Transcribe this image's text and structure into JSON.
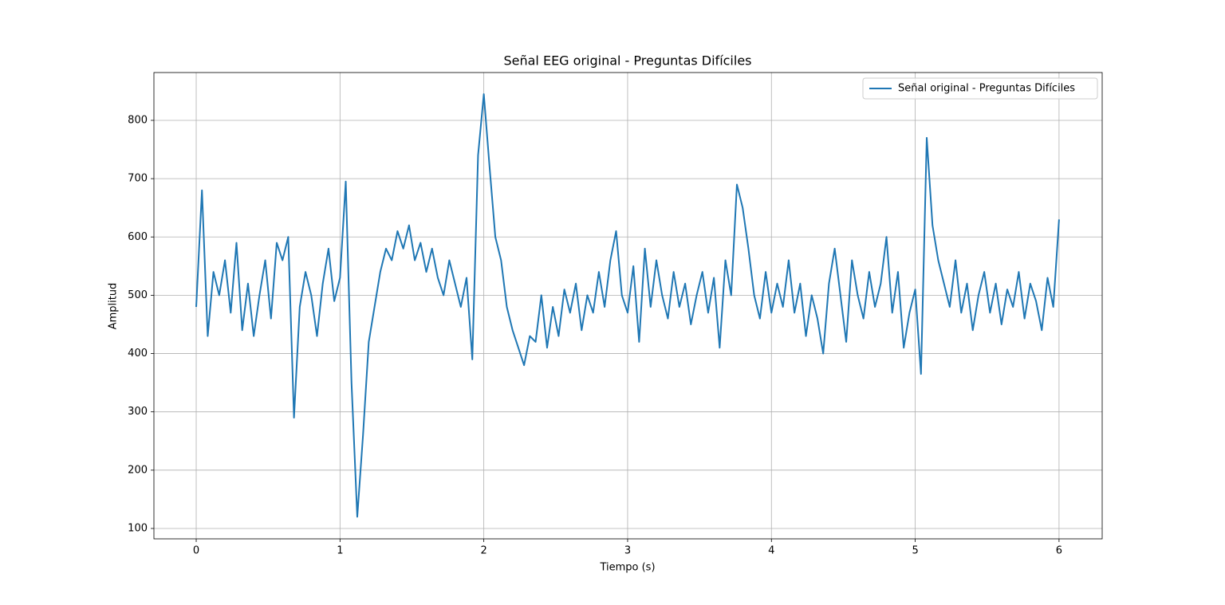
{
  "chart_data": {
    "type": "line",
    "title": "Señal EEG original - Preguntas Difíciles",
    "x_label": "Tiempo (s)",
    "y_label": "Amplitud",
    "x": [
      0,
      0.04,
      0.08,
      0.12,
      0.16,
      0.2,
      0.24,
      0.28,
      0.32,
      0.36,
      0.4,
      0.44,
      0.48,
      0.52,
      0.56,
      0.6,
      0.64,
      0.68,
      0.72,
      0.76,
      0.8,
      0.84,
      0.88,
      0.92,
      0.96,
      1,
      1.04,
      1.08,
      1.12,
      1.16,
      1.2,
      1.24,
      1.28,
      1.32,
      1.36,
      1.4,
      1.44,
      1.48,
      1.52,
      1.56,
      1.6,
      1.64,
      1.68,
      1.72,
      1.76,
      1.8,
      1.84,
      1.88,
      1.92,
      1.96,
      2,
      2.04,
      2.08,
      2.12,
      2.16,
      2.2,
      2.24,
      2.28,
      2.32,
      2.36,
      2.4,
      2.44,
      2.48,
      2.52,
      2.56,
      2.6,
      2.64,
      2.68,
      2.72,
      2.76,
      2.8,
      2.84,
      2.88,
      2.92,
      2.96,
      3,
      3.04,
      3.08,
      3.12,
      3.16,
      3.2,
      3.24,
      3.28,
      3.32,
      3.36,
      3.4,
      3.44,
      3.48,
      3.52,
      3.56,
      3.6,
      3.64,
      3.68,
      3.72,
      3.76,
      3.8,
      3.84,
      3.88,
      3.92,
      3.96,
      4,
      4.04,
      4.08,
      4.12,
      4.16,
      4.2,
      4.24,
      4.28,
      4.32,
      4.36,
      4.4,
      4.44,
      4.48,
      4.52,
      4.56,
      4.6,
      4.64,
      4.68,
      4.72,
      4.76,
      4.8,
      4.84,
      4.88,
      4.92,
      4.96,
      5,
      5.04,
      5.08,
      5.12,
      5.16,
      5.2,
      5.24,
      5.28,
      5.32,
      5.36,
      5.4,
      5.44,
      5.48,
      5.52,
      5.56,
      5.6,
      5.64,
      5.68,
      5.72,
      5.76,
      5.8,
      5.84,
      5.88,
      5.92,
      5.96,
      6
    ],
    "series": [
      {
        "name": "Señal original - Preguntas Difíciles",
        "color": "#1f77b4",
        "values": [
          480,
          680,
          430,
          540,
          500,
          560,
          470,
          590,
          440,
          520,
          430,
          500,
          560,
          460,
          590,
          560,
          600,
          290,
          480,
          540,
          500,
          430,
          520,
          580,
          490,
          530,
          695,
          350,
          120,
          260,
          420,
          480,
          540,
          580,
          560,
          610,
          580,
          620,
          560,
          590,
          540,
          580,
          530,
          500,
          560,
          520,
          480,
          530,
          390,
          740,
          845,
          720,
          600,
          560,
          480,
          440,
          410,
          380,
          430,
          420,
          500,
          410,
          480,
          430,
          510,
          470,
          520,
          440,
          500,
          470,
          540,
          480,
          560,
          610,
          500,
          470,
          550,
          420,
          580,
          480,
          560,
          500,
          460,
          540,
          480,
          520,
          450,
          500,
          540,
          470,
          530,
          410,
          560,
          500,
          690,
          650,
          580,
          500,
          460,
          540,
          470,
          520,
          480,
          560,
          470,
          520,
          430,
          500,
          460,
          400,
          520,
          580,
          500,
          420,
          560,
          500,
          460,
          540,
          480,
          520,
          600,
          470,
          540,
          410,
          470,
          510,
          365,
          770,
          620,
          560,
          520,
          480,
          560,
          470,
          520,
          440,
          500,
          540,
          470,
          520,
          450,
          510,
          480,
          540,
          460,
          520,
          490,
          440,
          530,
          480,
          630
        ]
      }
    ],
    "xlim": [
      -0.294,
      6.3
    ],
    "ylim": [
      82.2,
      882
    ],
    "xticks": [
      0,
      1,
      2,
      3,
      4,
      5,
      6
    ],
    "yticks": [
      100,
      200,
      300,
      400,
      500,
      600,
      700,
      800
    ],
    "grid": true,
    "legend": "upper right"
  }
}
